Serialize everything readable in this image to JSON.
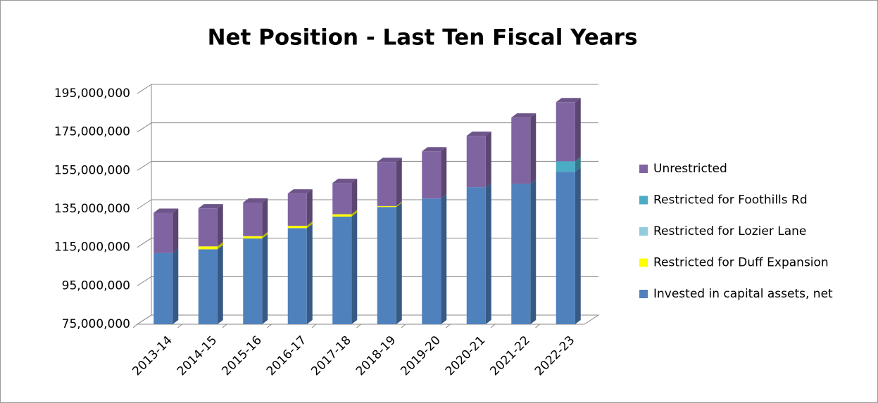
{
  "chart_data": {
    "type": "bar3d_stacked",
    "title": "Net Position - Last Ten Fiscal Years",
    "categories": [
      "2013-14",
      "2014-15",
      "2015-16",
      "2016-17",
      "2017-18",
      "2018-19",
      "2019-20",
      "2020-21",
      "2021-22",
      "2022-23"
    ],
    "series": [
      {
        "name": "Invested in capital assets, net",
        "color": "#4f81bd",
        "values": [
          112000000,
          114000000,
          119600000,
          125000000,
          131000000,
          136000000,
          140400000,
          146300000,
          148000000,
          154300000
        ]
      },
      {
        "name": "Restricted for Duff Expansion",
        "color": "#ffff00",
        "values": [
          0,
          1500000,
          1200000,
          1200000,
          1200000,
          500000,
          0,
          0,
          0,
          0
        ]
      },
      {
        "name": "Restricted for Lozier Lane",
        "color": "#93cddd",
        "values": [
          0,
          0,
          0,
          0,
          0,
          0,
          0,
          0,
          0,
          0
        ]
      },
      {
        "name": "Restricted for Foothills Rd",
        "color": "#4bacc6",
        "values": [
          0,
          0,
          0,
          0,
          0,
          0,
          0,
          0,
          0,
          5500000
        ]
      },
      {
        "name": "Unrestricted",
        "color": "#8064a2",
        "values": [
          21000000,
          19800000,
          17500000,
          16800000,
          16300000,
          22900000,
          24500000,
          26700000,
          34500000,
          30700000
        ]
      }
    ],
    "ylim": [
      75000000,
      195000000
    ],
    "yticks": [
      {
        "value": 75000000,
        "label": "75,000,000"
      },
      {
        "value": 95000000,
        "label": "95,000,000"
      },
      {
        "value": 115000000,
        "label": "115,000,000"
      },
      {
        "value": 135000000,
        "label": "135,000,000"
      },
      {
        "value": 155000000,
        "label": "155,000,000"
      },
      {
        "value": 175000000,
        "label": "175,000,000"
      },
      {
        "value": 195000000,
        "label": "195,000,000"
      }
    ],
    "grid": true
  }
}
